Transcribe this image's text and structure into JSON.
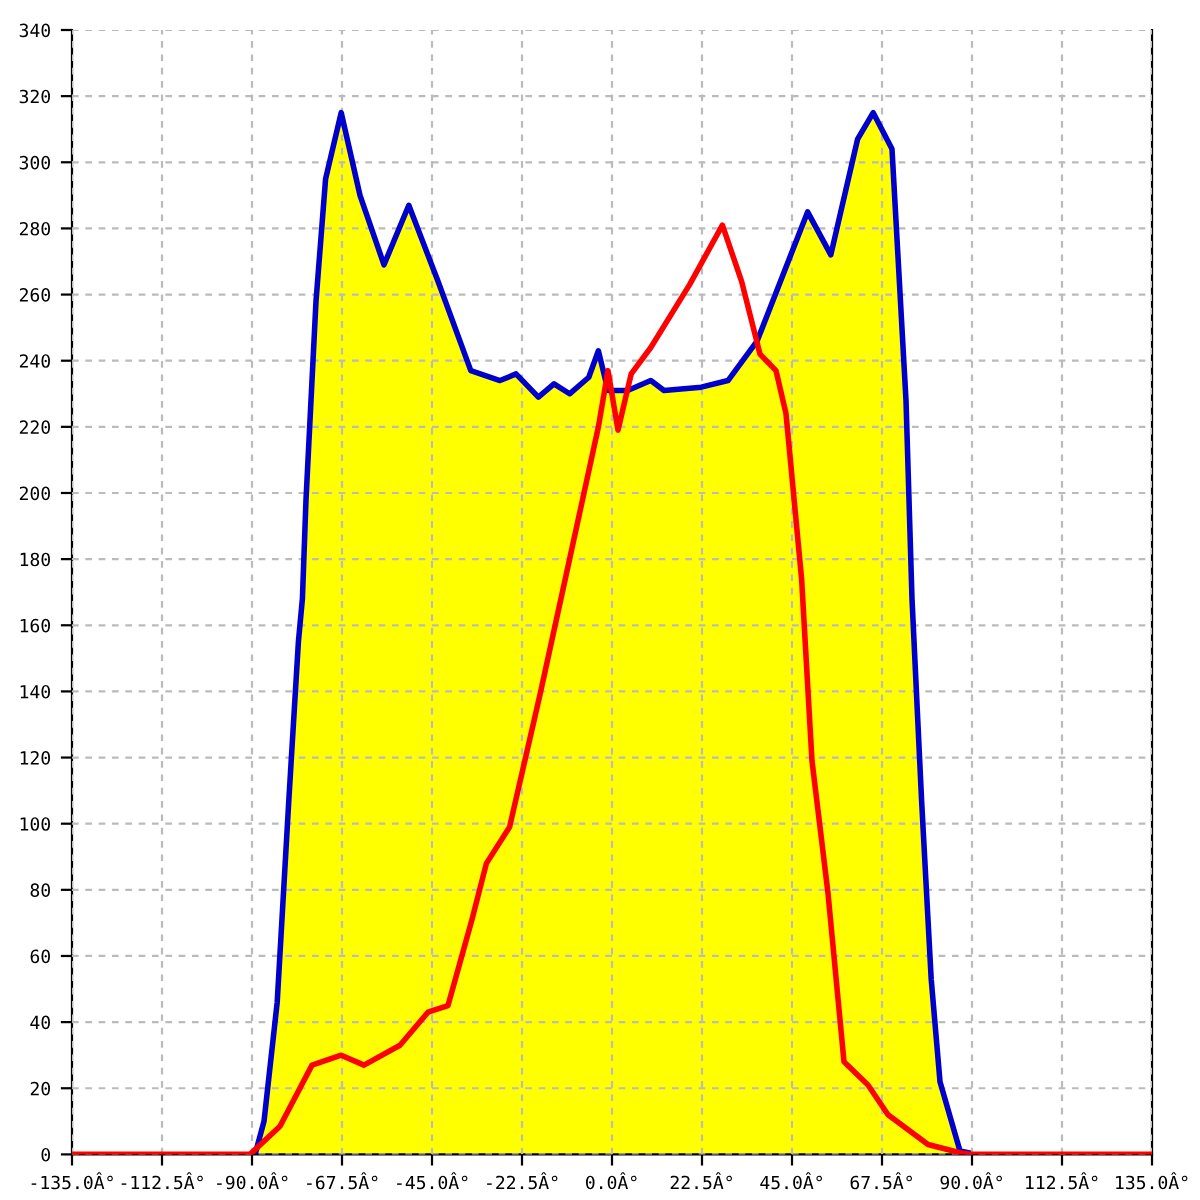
{
  "chart_data": {
    "type": "area",
    "xlim": [
      -135,
      135
    ],
    "ylim": [
      0,
      340
    ],
    "xticks": [
      {
        "value": -135,
        "label": "-135.0Â°"
      },
      {
        "value": -112.5,
        "label": "-112.5Â°"
      },
      {
        "value": -90,
        "label": "-90.0Â°"
      },
      {
        "value": -67.5,
        "label": "-67.5Â°"
      },
      {
        "value": -45,
        "label": "-45.0Â°"
      },
      {
        "value": -22.5,
        "label": "-22.5Â°"
      },
      {
        "value": 0,
        "label": "0.0Â°"
      },
      {
        "value": 22.5,
        "label": "22.5Â°"
      },
      {
        "value": 45,
        "label": "45.0Â°"
      },
      {
        "value": 67.5,
        "label": "67.5Â°"
      },
      {
        "value": 90,
        "label": "90.0Â°"
      },
      {
        "value": 112.5,
        "label": "112.5Â°"
      },
      {
        "value": 135,
        "label": "135.0Â°"
      }
    ],
    "yticks": [
      0,
      20,
      40,
      60,
      80,
      100,
      120,
      140,
      160,
      180,
      200,
      220,
      240,
      260,
      280,
      300,
      320,
      340
    ],
    "grid": true,
    "series": [
      {
        "color": "#ffff00",
        "x": [
          -135,
          -90,
          -87,
          -83.7,
          -80.8,
          -78.4,
          -77.4,
          -76.5,
          -74,
          -71.6,
          -67.7,
          -63,
          -57,
          -50.8,
          -43.5,
          -35.3,
          -28,
          -24,
          -18.4,
          -14.5,
          -10.6,
          -5.8,
          -3.4,
          -1,
          3.9,
          9.7,
          13,
          22.3,
          29,
          36.3,
          48.9,
          54.7,
          61.4,
          65.3,
          70,
          73.5,
          75,
          77.4,
          79.8,
          82,
          87,
          90,
          135
        ],
        "values": [
          0,
          0,
          10,
          46,
          107,
          155,
          168,
          198,
          258,
          295,
          315,
          290,
          269,
          287,
          264,
          237,
          234,
          236,
          229,
          233,
          230,
          235,
          243,
          231,
          231,
          234,
          231,
          232,
          234,
          246,
          285,
          272,
          307,
          315,
          304,
          228,
          168,
          107,
          53,
          22,
          1,
          0,
          0
        ]
      },
      {
        "type": "line",
        "color": "#0000cc",
        "x": [
          -89,
          -87,
          -83.7,
          -80.8,
          -78.4,
          -77.4,
          -76.5,
          -74,
          -71.6,
          -67.7,
          -63,
          -57,
          -50.8,
          -43.5,
          -35.3,
          -28,
          -24,
          -18.4,
          -14.5,
          -10.6,
          -5.8,
          -3.4,
          -1,
          3.9,
          9.7,
          13,
          22.3,
          29,
          36.3,
          48.9,
          54.7,
          61.4,
          65.3,
          70,
          73.5,
          75,
          77.4,
          79.8,
          82,
          87,
          89
        ],
        "values": [
          1,
          10,
          46,
          107,
          155,
          168,
          198,
          258,
          295,
          315,
          290,
          269,
          287,
          264,
          237,
          234,
          236,
          229,
          233,
          230,
          235,
          243,
          231,
          231,
          234,
          231,
          232,
          234,
          246,
          285,
          272,
          307,
          315,
          304,
          228,
          168,
          107,
          53,
          22,
          1,
          0.5
        ]
      },
      {
        "type": "line",
        "color": "#ff0000",
        "x": [
          -135,
          -90.5,
          -83,
          -75,
          -67.7,
          -62,
          -53,
          -46,
          -41,
          -35,
          -31.4,
          -25.6,
          -18,
          -10.6,
          -3.4,
          -1,
          1.5,
          4.8,
          9.7,
          19.4,
          27.6,
          32.4,
          37,
          41,
          43.5,
          47.4,
          50,
          54,
          58,
          64,
          69,
          79,
          87,
          90,
          135
        ],
        "values": [
          0,
          0,
          8.5,
          27,
          30,
          27,
          33,
          43,
          45,
          71,
          88,
          99,
          139,
          180,
          220,
          237,
          219,
          236,
          244,
          263,
          281,
          264,
          242,
          237,
          224,
          174,
          119,
          79,
          28,
          21,
          12,
          3,
          0.5,
          0,
          0
        ]
      }
    ]
  }
}
